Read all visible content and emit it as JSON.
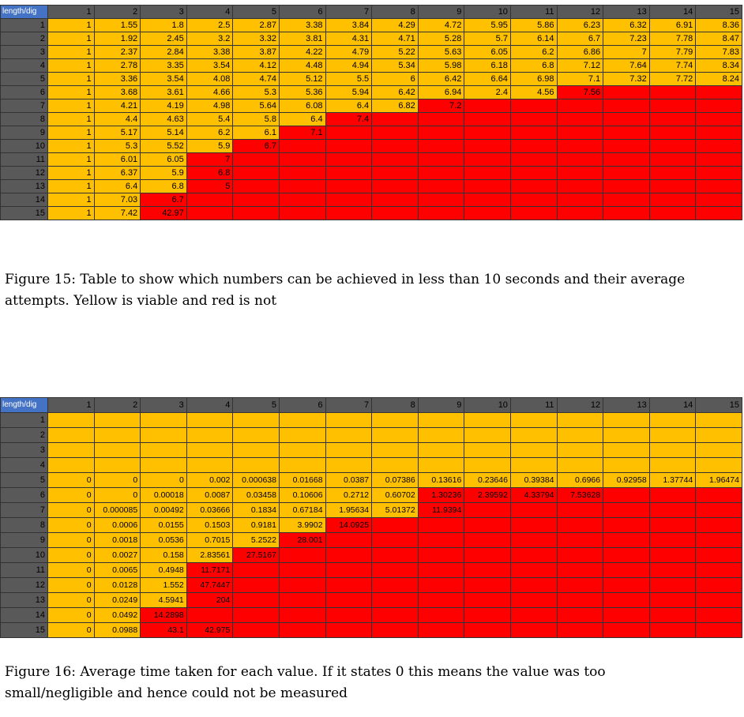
{
  "table1": {
    "corner_label": "length/dig",
    "columns": [
      "1",
      "2",
      "3",
      "4",
      "5",
      "6",
      "7",
      "8",
      "9",
      "10",
      "11",
      "12",
      "13",
      "14",
      "15"
    ],
    "rows": [
      {
        "label": "1",
        "cells": [
          "1",
          "1.55",
          "1.8",
          "2.5",
          "2.87",
          "3.38",
          "3.84",
          "4.29",
          "4.72",
          "5.95",
          "5.86",
          "6.23",
          "6.32",
          "6.91",
          "8.36"
        ],
        "viable": 15
      },
      {
        "label": "2",
        "cells": [
          "1",
          "1.92",
          "2.45",
          "3.2",
          "3.32",
          "3.81",
          "4.31",
          "4.71",
          "5.28",
          "5.7",
          "6.14",
          "6.7",
          "7.23",
          "7.78",
          "8.47"
        ],
        "viable": 15
      },
      {
        "label": "3",
        "cells": [
          "1",
          "2.37",
          "2.84",
          "3.38",
          "3.87",
          "4.22",
          "4.79",
          "5.22",
          "5.63",
          "6.05",
          "6.2",
          "6.86",
          "7",
          "7.79",
          "7.83"
        ],
        "viable": 15
      },
      {
        "label": "4",
        "cells": [
          "1",
          "2.78",
          "3.35",
          "3.54",
          "4.12",
          "4.48",
          "4.94",
          "5.34",
          "5.98",
          "6.18",
          "6.8",
          "7.12",
          "7.64",
          "7.74",
          "8.34"
        ],
        "viable": 15
      },
      {
        "label": "5",
        "cells": [
          "1",
          "3.36",
          "3.54",
          "4.08",
          "4.74",
          "5.12",
          "5.5",
          "6",
          "6.42",
          "6.64",
          "6.98",
          "7.1",
          "7.32",
          "7.72",
          "8.24"
        ],
        "viable": 15
      },
      {
        "label": "6",
        "cells": [
          "1",
          "3.68",
          "3.61",
          "4.66",
          "5.3",
          "5.36",
          "5.94",
          "6.42",
          "6.94",
          "2.4",
          "4.56",
          "7.56",
          "",
          "",
          ""
        ],
        "viable": 11
      },
      {
        "label": "7",
        "cells": [
          "1",
          "4.21",
          "4.19",
          "4.98",
          "5.64",
          "6.08",
          "6.4",
          "6.82",
          "7.2",
          "",
          "",
          "",
          "",
          "",
          ""
        ],
        "viable": 8
      },
      {
        "label": "8",
        "cells": [
          "1",
          "4.4",
          "4.63",
          "5.4",
          "5.8",
          "6.4",
          "7.4",
          "",
          "",
          "",
          "",
          "",
          "",
          "",
          ""
        ],
        "viable": 6
      },
      {
        "label": "9",
        "cells": [
          "1",
          "5.17",
          "5.14",
          "6.2",
          "6.1",
          "7.1",
          "",
          "",
          "",
          "",
          "",
          "",
          "",
          "",
          ""
        ],
        "viable": 5
      },
      {
        "label": "10",
        "cells": [
          "1",
          "5.3",
          "5.52",
          "5.9",
          "6.7",
          "",
          "",
          "",
          "",
          "",
          "",
          "",
          "",
          "",
          ""
        ],
        "viable": 4
      },
      {
        "label": "11",
        "cells": [
          "1",
          "6.01",
          "6.05",
          "7",
          "",
          "",
          "",
          "",
          "",
          "",
          "",
          "",
          "",
          "",
          ""
        ],
        "viable": 3
      },
      {
        "label": "12",
        "cells": [
          "1",
          "6.37",
          "5.9",
          "6.8",
          "",
          "",
          "",
          "",
          "",
          "",
          "",
          "",
          "",
          "",
          ""
        ],
        "viable": 3
      },
      {
        "label": "13",
        "cells": [
          "1",
          "6.4",
          "6.8",
          "5",
          "",
          "",
          "",
          "",
          "",
          "",
          "",
          "",
          "",
          "",
          ""
        ],
        "viable": 3
      },
      {
        "label": "14",
        "cells": [
          "1",
          "7.03",
          "6.7",
          "",
          "",
          "",
          "",
          "",
          "",
          "",
          "",
          "",
          "",
          "",
          ""
        ],
        "viable": 2
      },
      {
        "label": "15",
        "cells": [
          "1",
          "7.42",
          "42.97",
          "",
          "",
          "",
          "",
          "",
          "",
          "",
          "",
          "",
          "",
          "",
          ""
        ],
        "viable": 2
      }
    ]
  },
  "caption1": "Figure 15: Table to show which numbers can be achieved in less than 10 seconds and their average attempts. Yellow is viable and red is not",
  "table2": {
    "corner_label": "length/dig",
    "columns": [
      "1",
      "2",
      "3",
      "4",
      "5",
      "6",
      "7",
      "8",
      "9",
      "10",
      "11",
      "12",
      "13",
      "14",
      "15"
    ],
    "rows": [
      {
        "label": "1",
        "cells": [
          "",
          "",
          "",
          "",
          "",
          "",
          "",
          "",
          "",
          "",
          "",
          "",
          "",
          "",
          ""
        ],
        "viable": 15
      },
      {
        "label": "2",
        "cells": [
          "",
          "",
          "",
          "",
          "",
          "",
          "",
          "",
          "",
          "",
          "",
          "",
          "",
          "",
          ""
        ],
        "viable": 15
      },
      {
        "label": "3",
        "cells": [
          "",
          "",
          "",
          "",
          "",
          "",
          "",
          "",
          "",
          "",
          "",
          "",
          "",
          "",
          ""
        ],
        "viable": 15
      },
      {
        "label": "4",
        "cells": [
          "",
          "",
          "",
          "",
          "",
          "",
          "",
          "",
          "",
          "",
          "",
          "",
          "",
          "",
          ""
        ],
        "viable": 15
      },
      {
        "label": "5",
        "cells": [
          "0",
          "0",
          "0",
          "0.002",
          "0.000638",
          "0.01668",
          "0.0387",
          "0.07386",
          "0.13616",
          "0.23646",
          "0.39384",
          "0.6966",
          "0.92958",
          "1.37744",
          "1.96474"
        ],
        "viable": 15
      },
      {
        "label": "6",
        "cells": [
          "0",
          "0",
          "0.00018",
          "0.0087",
          "0.03458",
          "0.10606",
          "0.2712",
          "0.60702",
          "1.30236",
          "2.39592",
          "4.33794",
          "7.53628",
          "",
          "",
          ""
        ],
        "viable": 8
      },
      {
        "label": "7",
        "cells": [
          "0",
          "0.000085",
          "0.00492",
          "0.03666",
          "0.1834",
          "0.67184",
          "1.95634",
          "5.01372",
          "11.9394",
          "",
          "",
          "",
          "",
          "",
          ""
        ],
        "viable": 8
      },
      {
        "label": "8",
        "cells": [
          "0",
          "0.0006",
          "0.0155",
          "0.1503",
          "0.9181",
          "3.9902",
          "14.0925",
          "",
          "",
          "",
          "",
          "",
          "",
          "",
          ""
        ],
        "viable": 6
      },
      {
        "label": "9",
        "cells": [
          "0",
          "0.0018",
          "0.0536",
          "0.7015",
          "5.2522",
          "28.001",
          "",
          "",
          "",
          "",
          "",
          "",
          "",
          "",
          ""
        ],
        "viable": 5
      },
      {
        "label": "10",
        "cells": [
          "0",
          "0.0027",
          "0.158",
          "2.83561",
          "27.5167",
          "",
          "",
          "",
          "",
          "",
          "",
          "",
          "",
          "",
          ""
        ],
        "viable": 4
      },
      {
        "label": "11",
        "cells": [
          "0",
          "0.0065",
          "0.4948",
          "11.7171",
          "",
          "",
          "",
          "",
          "",
          "",
          "",
          "",
          "",
          "",
          ""
        ],
        "viable": 3
      },
      {
        "label": "12",
        "cells": [
          "0",
          "0.0128",
          "1.552",
          "47.7447",
          "",
          "",
          "",
          "",
          "",
          "",
          "",
          "",
          "",
          "",
          ""
        ],
        "viable": 3
      },
      {
        "label": "13",
        "cells": [
          "0",
          "0.0249",
          "4.5941",
          "204",
          "",
          "",
          "",
          "",
          "",
          "",
          "",
          "",
          "",
          "",
          ""
        ],
        "viable": 3
      },
      {
        "label": "14",
        "cells": [
          "0",
          "0.0492",
          "14.2898",
          "",
          "",
          "",
          "",
          "",
          "",
          "",
          "",
          "",
          "",
          "",
          ""
        ],
        "viable": 2
      },
      {
        "label": "15",
        "cells": [
          "0",
          "0.0988",
          "43.1",
          "42.975",
          "",
          "",
          "",
          "",
          "",
          "",
          "",
          "",
          "",
          "",
          ""
        ],
        "viable": 2
      }
    ]
  },
  "caption2": "Figure 16: Average time taken for each value. If it states 0 this means the value was too small/negligible and hence could not be measured",
  "colors": {
    "viable": "#ffc000",
    "not_viable": "#ff0000",
    "header": "#595959",
    "corner": "#4472c4"
  }
}
